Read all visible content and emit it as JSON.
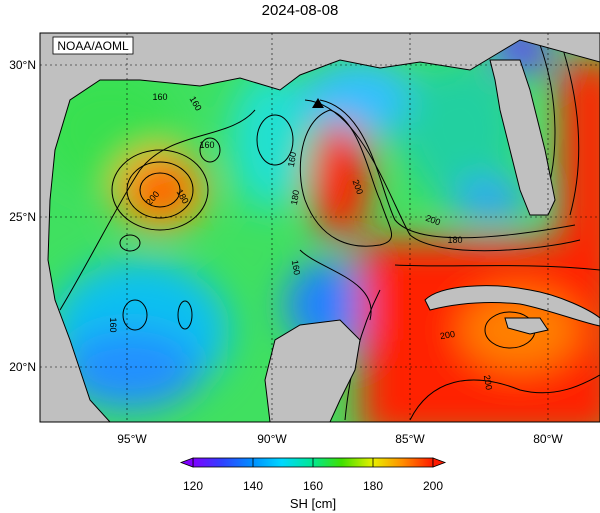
{
  "title": "2024-08-08",
  "watermark": "NOAA/AOML",
  "axes": {
    "lat_ticks": [
      "30°N",
      "25°N",
      "20°N"
    ],
    "lon_ticks": [
      "95°W",
      "90°W",
      "85°W",
      "80°W"
    ],
    "lon_range": [
      -98,
      -78.5
    ],
    "lat_range": [
      18,
      31
    ]
  },
  "colorbar": {
    "label": "SH [cm]",
    "ticks": [
      "120",
      "140",
      "160",
      "180",
      "200"
    ],
    "range": [
      120,
      200
    ],
    "extend": "both"
  },
  "contour_labels": [
    "160",
    "160",
    "160",
    "160",
    "160",
    "160",
    "180",
    "180",
    "180",
    "200",
    "200",
    "200",
    "200",
    "200"
  ],
  "marker": {
    "symbol": "triangle",
    "lon": -88.2,
    "lat": 28.7
  },
  "colors": {
    "land": "#c0c0c0",
    "low": "#8000ff",
    "mid": "#00e0ff",
    "high": "#ff1a00",
    "grid": "#000000"
  }
}
